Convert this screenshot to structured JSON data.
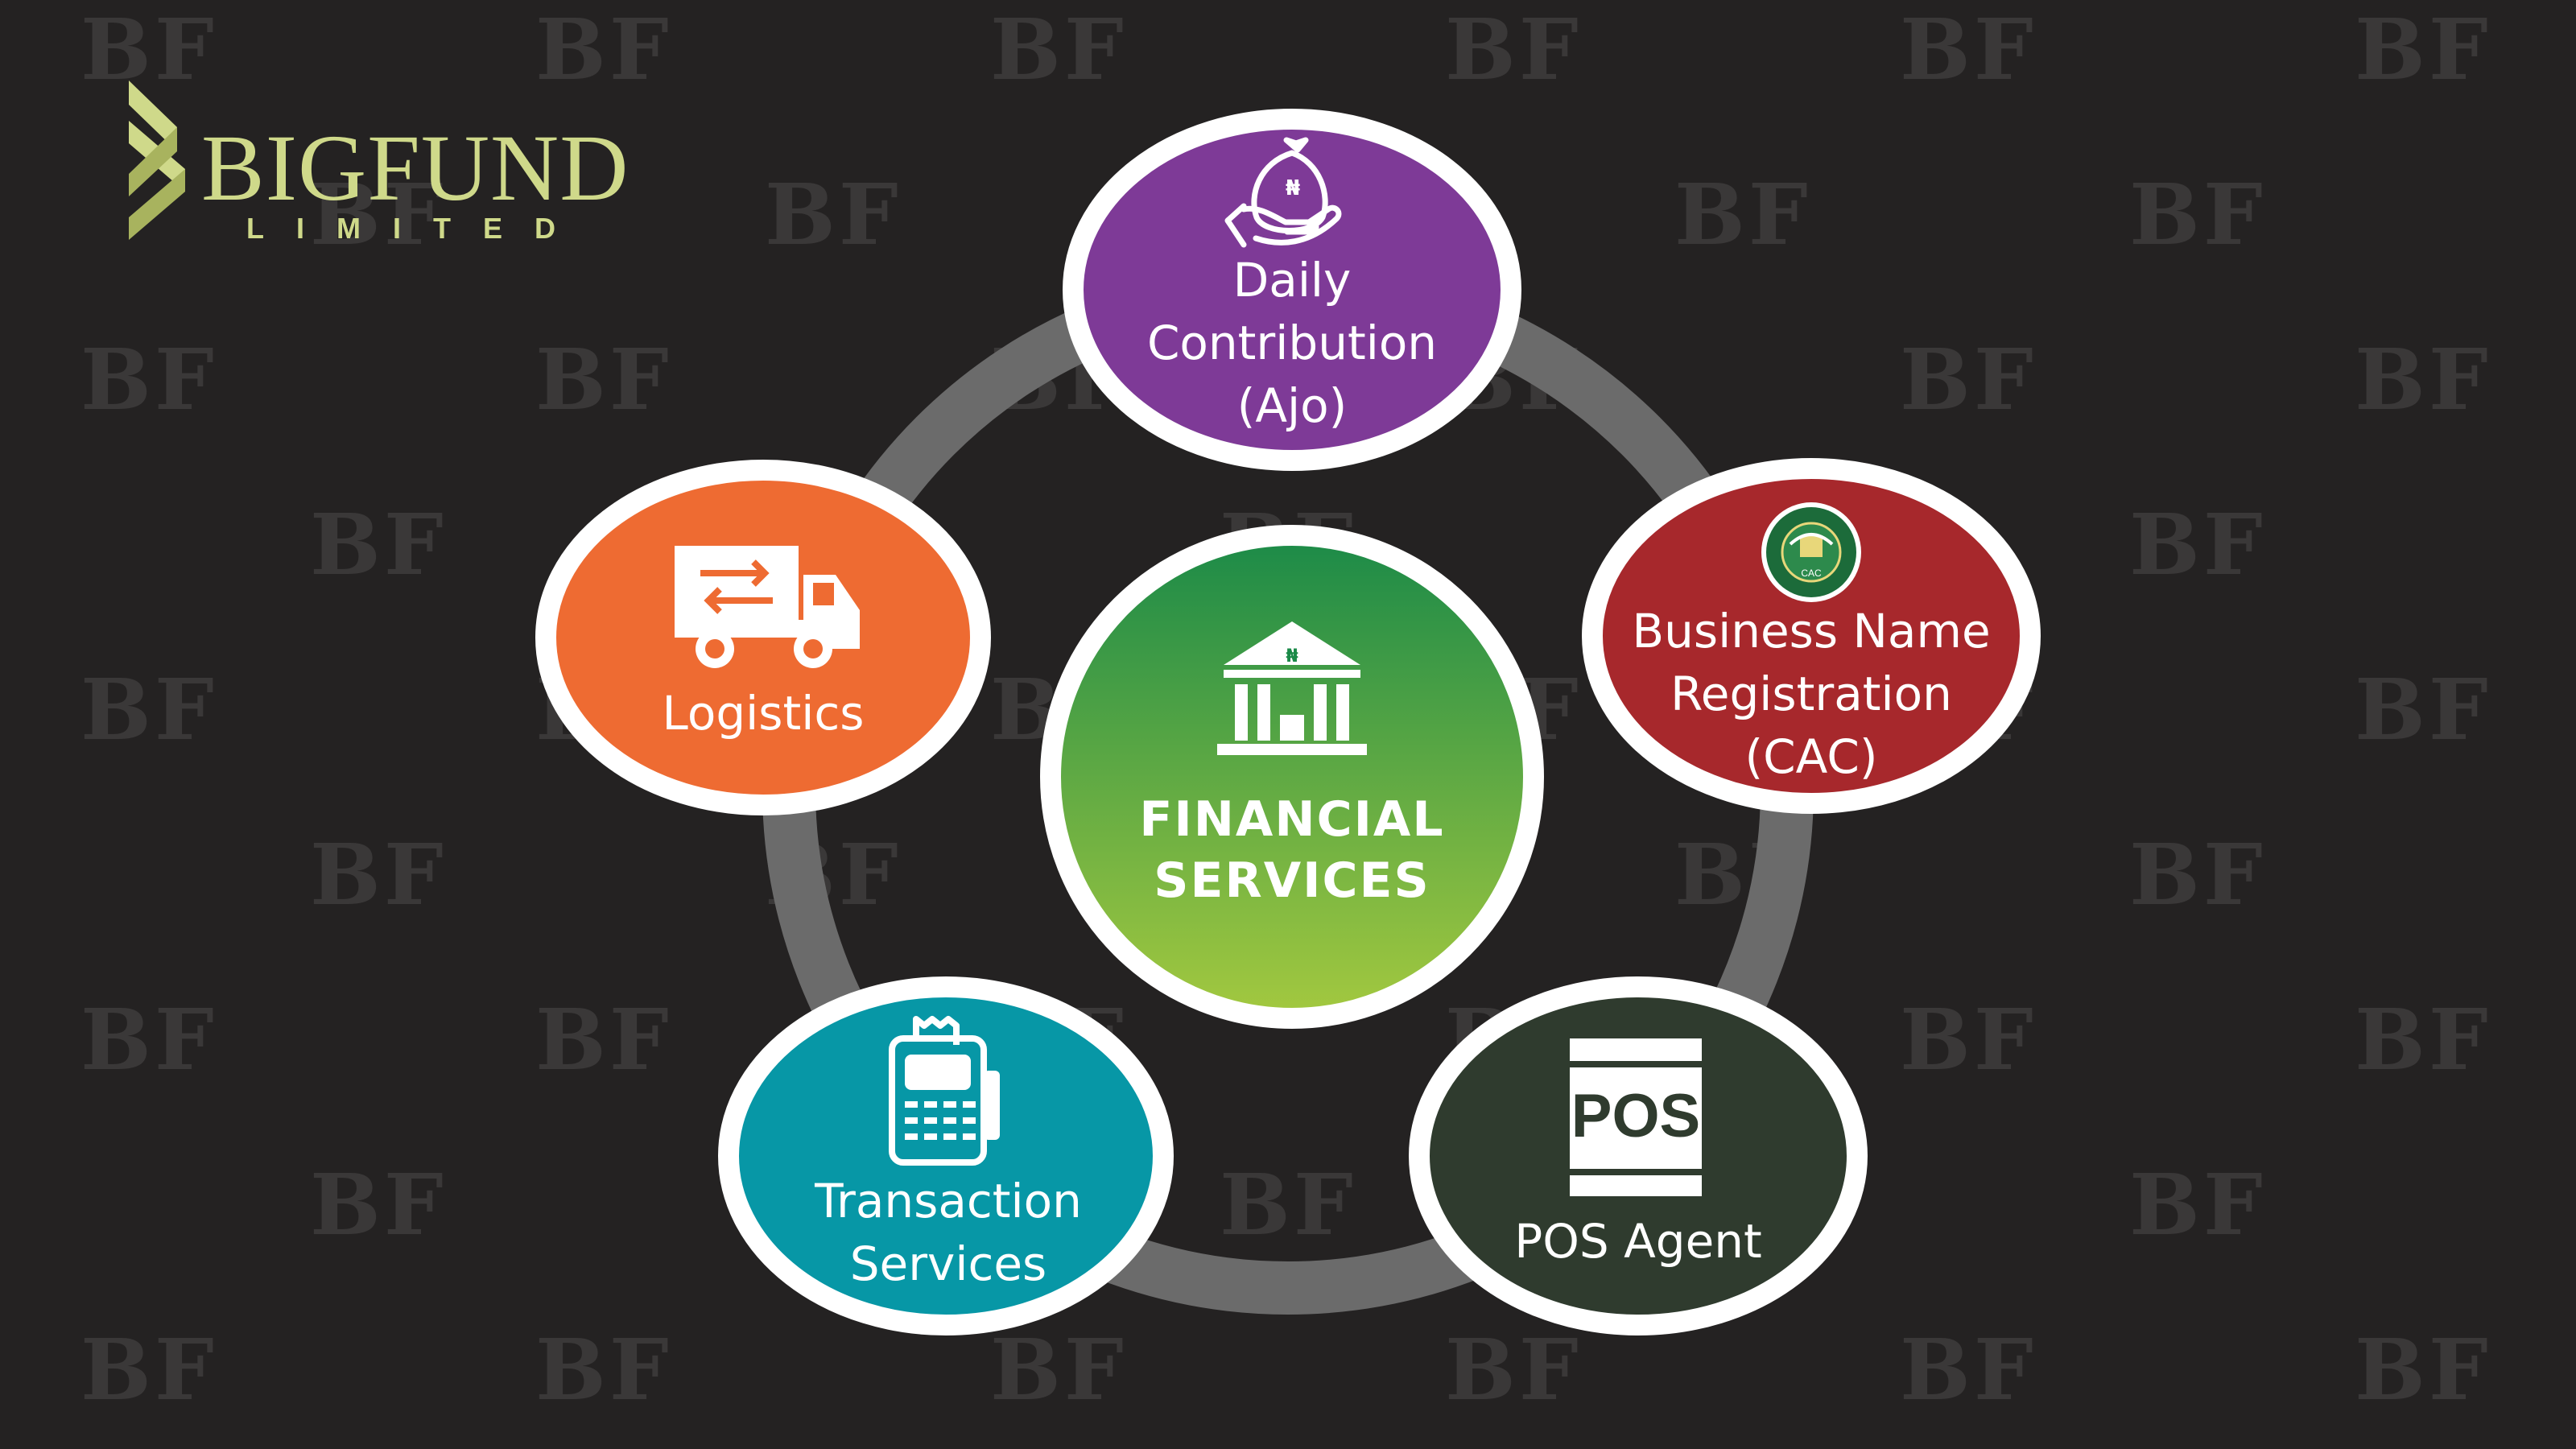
{
  "watermark": {
    "text": "BF"
  },
  "logo": {
    "name": "BIGFUND",
    "subtitle": "LIMITED",
    "color": "#cfd98a",
    "icon": "bigfund-chevron-icon"
  },
  "center": {
    "lines": [
      "FINANCIAL",
      "SERVICES"
    ],
    "icon": "bank-building-icon",
    "gradient": [
      "#1b8a48",
      "#a4c93f"
    ]
  },
  "nodes": [
    {
      "id": "daily-contribution",
      "lines": [
        "Daily",
        "Contribution",
        "(Ajo)"
      ],
      "color": "#7e3a97",
      "icon": "money-bag-hand-icon"
    },
    {
      "id": "business-name-registration",
      "lines": [
        "Business Name",
        "Registration",
        "(CAC)"
      ],
      "color": "#a7282c",
      "icon": "cac-seal-icon",
      "seal_text": "CAC"
    },
    {
      "id": "pos-agent",
      "lines": [
        "POS Agent"
      ],
      "color": "#2f3b2e",
      "icon": "pos-box-icon",
      "icon_text": "POS"
    },
    {
      "id": "transaction-services",
      "lines": [
        "Transaction",
        "Services"
      ],
      "color": "#0797a6",
      "icon": "pos-terminal-icon"
    },
    {
      "id": "logistics",
      "lines": [
        "Logistics"
      ],
      "color": "#ee6b32",
      "icon": "delivery-truck-icon"
    }
  ],
  "colors": {
    "background": "#242222",
    "ring": "#6b6b6b",
    "border": "#ffffff"
  }
}
